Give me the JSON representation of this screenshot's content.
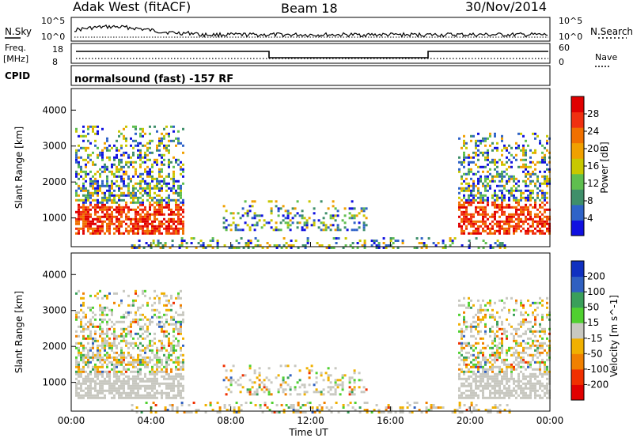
{
  "header": {
    "title": "Adak West (fitACF)",
    "beam": "Beam 18",
    "date": "30/Nov/2014"
  },
  "panels": {
    "nsky_label": "N.Sky",
    "nsearch_label": "N.Search",
    "freq_label_1": "Freq.",
    "freq_label_2": "[MHz]",
    "nave_label": "Nave",
    "cpid_label": "CPID",
    "cpid_text": "normalsound (fast) -157 RF",
    "noise_ticks": [
      "10^5",
      "10^0"
    ],
    "noise_ticks_right": [
      "10^5",
      "10^0"
    ],
    "freq_ticks": [
      "18",
      "8"
    ],
    "nave_ticks": [
      "60",
      "0"
    ]
  },
  "colors": {
    "power": [
      "#1010e0",
      "#2f63c8",
      "#3f8f6a",
      "#5fbf4f",
      "#c8c800",
      "#f0a000",
      "#f07000",
      "#f03010",
      "#e00000"
    ],
    "velocity": [
      "#e00000",
      "#f03000",
      "#f08000",
      "#f0b000",
      "#c8c8c0",
      "#50d030",
      "#3a9f5a",
      "#3060c0",
      "#1030c0"
    ]
  },
  "chart_data": [
    {
      "type": "heatmap",
      "name": "power",
      "ylabel": "Slant Range [km]",
      "yticks": [
        "1000",
        "2000",
        "3000",
        "4000"
      ],
      "ylim": [
        200,
        4600
      ],
      "colorbar_label": "Power [dB]",
      "colorbar_ticks": [
        "4",
        "8",
        "12",
        "16",
        "20",
        "24",
        "28"
      ],
      "clim": [
        0,
        32
      ]
    },
    {
      "type": "heatmap",
      "name": "velocity",
      "ylabel": "Slant Range [km]",
      "yticks": [
        "1000",
        "2000",
        "3000",
        "4000"
      ],
      "ylim": [
        200,
        4600
      ],
      "colorbar_label": "Velocity [m s^-1]",
      "colorbar_ticks": [
        "-200",
        "-100",
        "-50",
        "-15",
        "15",
        "50",
        "100",
        "200"
      ]
    }
  ],
  "xaxis": {
    "xlabel": "Time UT",
    "ticks": [
      "00:00",
      "04:00",
      "08:00",
      "12:00",
      "16:00",
      "20:00",
      "00:00"
    ],
    "xlim_hours": [
      0,
      24
    ]
  }
}
